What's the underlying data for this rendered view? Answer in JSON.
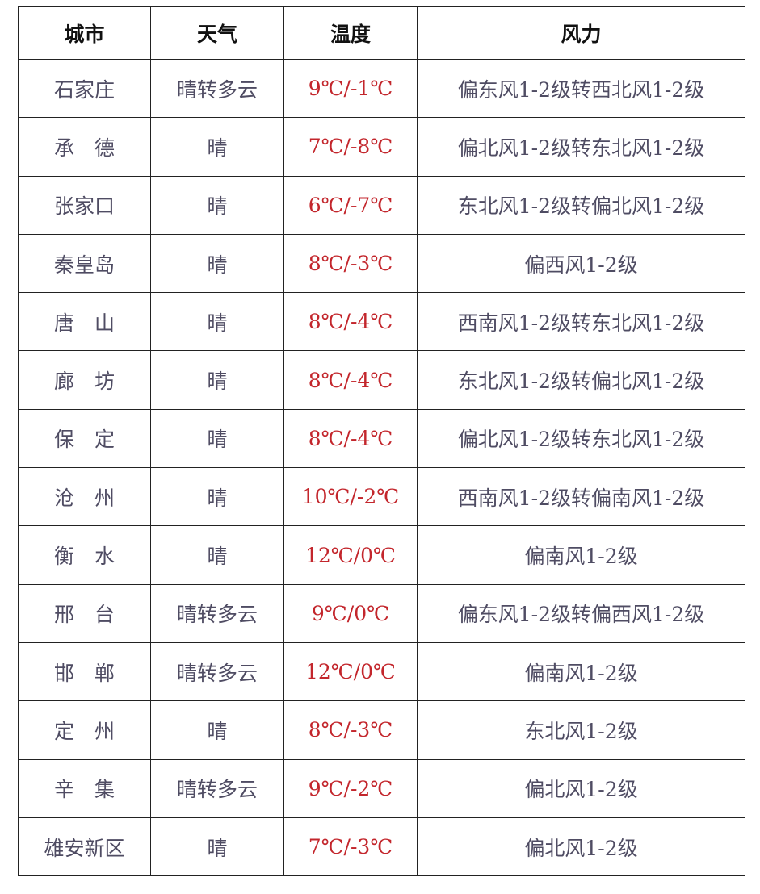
{
  "colors": {
    "temperature": "#c3262c",
    "text": "#4f4c63",
    "header": "#111111"
  },
  "headers": {
    "city": "城市",
    "weather": "天气",
    "temperature": "温度",
    "wind": "风力"
  },
  "rows": [
    {
      "city": "石家庄",
      "weather": "晴转多云",
      "temperature": "9℃/-1℃",
      "wind": "偏东风1-2级转西北风1-2级"
    },
    {
      "city": "承　德",
      "weather": "晴",
      "temperature": "7℃/-8℃",
      "wind": "偏北风1-2级转东北风1-2级"
    },
    {
      "city": "张家口",
      "weather": "晴",
      "temperature": "6℃/-7℃",
      "wind": "东北风1-2级转偏北风1-2级"
    },
    {
      "city": "秦皇岛",
      "weather": "晴",
      "temperature": "8℃/-3℃",
      "wind": "偏西风1-2级"
    },
    {
      "city": "唐　山",
      "weather": "晴",
      "temperature": "8℃/-4℃",
      "wind": "西南风1-2级转东北风1-2级"
    },
    {
      "city": "廊　坊",
      "weather": "晴",
      "temperature": "8℃/-4℃",
      "wind": "东北风1-2级转偏北风1-2级"
    },
    {
      "city": "保　定",
      "weather": "晴",
      "temperature": "8℃/-4℃",
      "wind": "偏北风1-2级转东北风1-2级"
    },
    {
      "city": "沧　州",
      "weather": "晴",
      "temperature": "10℃/-2℃",
      "wind": "西南风1-2级转偏南风1-2级"
    },
    {
      "city": "衡　水",
      "weather": "晴",
      "temperature": "12℃/0℃",
      "wind": "偏南风1-2级"
    },
    {
      "city": "邢　台",
      "weather": "晴转多云",
      "temperature": "9℃/0℃",
      "wind": "偏东风1-2级转偏西风1-2级"
    },
    {
      "city": "邯　郸",
      "weather": "晴转多云",
      "temperature": "12℃/0℃",
      "wind": "偏南风1-2级"
    },
    {
      "city": "定　州",
      "weather": "晴",
      "temperature": "8℃/-3℃",
      "wind": "东北风1-2级"
    },
    {
      "city": "辛　集",
      "weather": "晴转多云",
      "temperature": "9℃/-2℃",
      "wind": "偏北风1-2级"
    },
    {
      "city": "雄安新区",
      "weather": "晴",
      "temperature": "7℃/-3℃",
      "wind": "偏北风1-2级"
    }
  ]
}
